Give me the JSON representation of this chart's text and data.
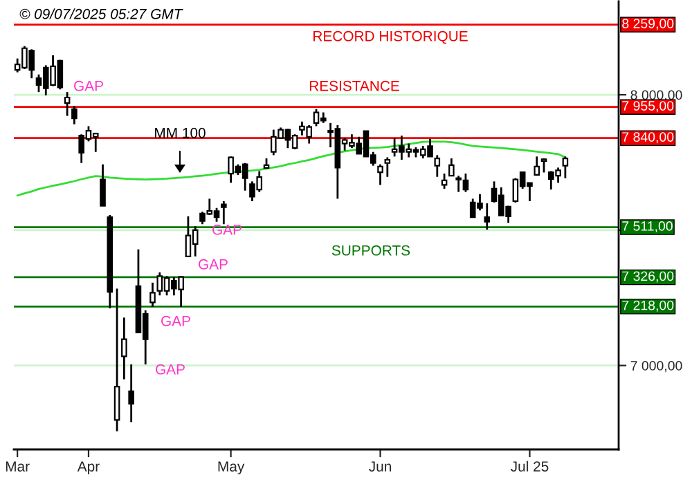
{
  "chart_data": {
    "type": "candlestick",
    "categories": [
      "Mar",
      null,
      null,
      null,
      null,
      null,
      null,
      null,
      null,
      null,
      "Apr",
      null,
      null,
      null,
      null,
      null,
      null,
      null,
      null,
      null,
      null,
      null,
      null,
      null,
      null,
      null,
      null,
      null,
      null,
      null,
      "May",
      null,
      null,
      null,
      null,
      null,
      null,
      null,
      null,
      null,
      null,
      null,
      null,
      null,
      null,
      null,
      null,
      null,
      null,
      null,
      null,
      "Jun",
      null,
      null,
      null,
      null,
      null,
      null,
      null,
      null,
      null,
      null,
      null,
      null,
      null,
      null,
      null,
      null,
      null,
      null,
      null,
      null,
      "Jul 25",
      null,
      null,
      null,
      null,
      null,
      null,
      null,
      null,
      null,
      null,
      null,
      null
    ],
    "ohlc": [
      [
        8092,
        8134,
        8083,
        8112
      ],
      [
        8100,
        8180,
        8095,
        8172
      ],
      [
        8163,
        8168,
        8061,
        8092
      ],
      [
        8061,
        8075,
        8010,
        8036
      ],
      [
        8100,
        8109,
        7998,
        8024
      ],
      [
        8036,
        8146,
        8032,
        8105
      ],
      [
        8126,
        8129,
        8020,
        8027
      ],
      [
        7969,
        8010,
        7922,
        7990
      ],
      [
        7947,
        7959,
        7891,
        7913
      ],
      [
        7849,
        7854,
        7748,
        7786
      ],
      [
        7837,
        7884,
        7828,
        7867
      ],
      [
        7845,
        7857,
        7789,
        7857
      ],
      [
        7687,
        7743,
        7590,
        7590
      ],
      [
        7548,
        7556,
        7211,
        7272
      ],
      [
        6799,
        7284,
        6757,
        6922
      ],
      [
        7034,
        7177,
        6949,
        7097
      ],
      [
        6905,
        7004,
        6791,
        6859
      ],
      [
        7293,
        7429,
        7122,
        7122
      ],
      [
        7190,
        7204,
        7004,
        7097
      ],
      [
        7233,
        7306,
        7216,
        7269
      ],
      [
        7276,
        7344,
        7259,
        7330
      ],
      [
        7276,
        7330,
        7259,
        7323
      ],
      [
        7313,
        7327,
        7259,
        7284
      ],
      [
        7281,
        7330,
        7216,
        7327
      ],
      [
        7403,
        7551,
        7403,
        7480
      ],
      [
        7449,
        7514,
        7403,
        7500
      ],
      [
        7561,
        7568,
        7522,
        7534
      ],
      [
        7560,
        7616,
        7556,
        7571
      ],
      [
        7570,
        7582,
        7531,
        7548
      ],
      [
        7595,
        7607,
        7522,
        7585
      ],
      [
        7709,
        7772,
        7675,
        7769
      ],
      [
        7735,
        7743,
        7704,
        7714
      ],
      [
        7743,
        7748,
        7646,
        7692
      ],
      [
        7670,
        7680,
        7607,
        7624
      ],
      [
        7650,
        7718,
        7641,
        7696
      ],
      [
        7730,
        7765,
        7726,
        7740
      ],
      [
        7789,
        7871,
        7777,
        7845
      ],
      [
        7840,
        7879,
        7837,
        7871
      ],
      [
        7871,
        7874,
        7803,
        7833
      ],
      [
        7803,
        7854,
        7799,
        7849
      ],
      [
        7871,
        7901,
        7850,
        7883
      ],
      [
        7845,
        7888,
        7820,
        7881
      ],
      [
        7896,
        7947,
        7884,
        7935
      ],
      [
        7913,
        7935,
        7896,
        7905
      ],
      [
        7867,
        7896,
        7806,
        7862
      ],
      [
        7874,
        7888,
        7616,
        7731
      ],
      [
        7820,
        7840,
        7794,
        7833
      ],
      [
        7811,
        7854,
        7803,
        7823
      ],
      [
        7820,
        7845,
        7782,
        7782
      ],
      [
        7866,
        7866,
        7772,
        7772
      ],
      [
        7777,
        7789,
        7738,
        7748
      ],
      [
        7714,
        7743,
        7667,
        7735
      ],
      [
        7748,
        7769,
        7697,
        7760
      ],
      [
        7789,
        7840,
        7772,
        7799
      ],
      [
        7810,
        7849,
        7760,
        7789
      ],
      [
        7789,
        7820,
        7769,
        7799
      ],
      [
        7796,
        7806,
        7769,
        7789
      ],
      [
        7777,
        7811,
        7765,
        7799
      ],
      [
        7810,
        7837,
        7772,
        7772
      ],
      [
        7738,
        7777,
        7697,
        7765
      ],
      [
        7667,
        7709,
        7653,
        7684
      ],
      [
        7701,
        7765,
        7701,
        7740
      ],
      [
        7692,
        7701,
        7641,
        7687
      ],
      [
        7684,
        7709,
        7641,
        7650
      ],
      [
        7602,
        7616,
        7548,
        7548
      ],
      [
        7599,
        7633,
        7573,
        7582
      ],
      [
        7548,
        7599,
        7502,
        7531
      ],
      [
        7653,
        7680,
        7602,
        7607
      ],
      [
        7628,
        7658,
        7554,
        7554
      ],
      [
        7587,
        7590,
        7527,
        7551
      ],
      [
        7607,
        7692,
        7602,
        7687
      ],
      [
        7714,
        7714,
        7653,
        7662
      ],
      [
        7674,
        7674,
        7607,
        7663
      ],
      [
        7704,
        7772,
        7701,
        7735
      ],
      [
        7755,
        7765,
        7713,
        7762
      ],
      [
        7714,
        7718,
        7650,
        7689
      ],
      [
        7701,
        7731,
        7675,
        7721
      ],
      [
        7738,
        7772,
        7692,
        7765
      ],
      null,
      null,
      null,
      null,
      null,
      null,
      null
    ],
    "series": [
      {
        "type": "line",
        "color": "#33dd33",
        "values": [
          7628,
          7636,
          7643,
          7652,
          7658,
          7664,
          7669,
          7675,
          7681,
          7688,
          7694,
          7700,
          7698,
          7694,
          7692,
          7690,
          7689,
          7688,
          7687,
          7688,
          7689,
          7690,
          7692,
          7694,
          7696,
          7699,
          7701,
          7704,
          7708,
          7711,
          7714,
          7716,
          7718,
          7720,
          7723,
          7727,
          7732,
          7736,
          7743,
          7748,
          7754,
          7759,
          7766,
          7773,
          7779,
          7786,
          7791,
          7795,
          7799,
          7803,
          7804,
          7805,
          7807,
          7811,
          7815,
          7818,
          7822,
          7826,
          7827,
          7827,
          7827,
          7825,
          7821,
          7816,
          7811,
          7809,
          7807,
          7805,
          7803,
          7801,
          7799,
          7796,
          7793,
          7790,
          7787,
          7784,
          7781,
          7769,
          null,
          null,
          null,
          null,
          null,
          null,
          null
        ]
      }
    ],
    "ylim": [
      6690,
      8345
    ],
    "yticks": [
      {
        "value": 7000,
        "label": "7 000,00"
      },
      {
        "value": 7500,
        "label": null
      },
      {
        "value": 8000,
        "label": "8 000,00"
      }
    ],
    "grid": "y",
    "ref_lines": [
      {
        "axis": "y",
        "value": 8259,
        "label": "8 259,00",
        "color": "#ee0000"
      },
      {
        "axis": "y",
        "value": 7955,
        "label": "7 955,00",
        "color": "#ee0000"
      },
      {
        "axis": "y",
        "value": 7840,
        "label": "7 840,00",
        "color": "#ee0000"
      },
      {
        "axis": "y",
        "value": 7511,
        "label": "7 511,00",
        "color": "#007700"
      },
      {
        "axis": "y",
        "value": 7326,
        "label": "7 326,00",
        "color": "#007700"
      },
      {
        "axis": "y",
        "value": 7218,
        "label": "7 218,00",
        "color": "#007700"
      }
    ],
    "annotations": [
      "© 09/07/2025 05:27 GMT",
      "RECORD HISTORIQUE",
      "RESISTANCE",
      "SUPPORTS",
      "MM 100",
      "GAP",
      "GAP",
      "GAP",
      "GAP",
      "GAP"
    ],
    "legend": false
  }
}
